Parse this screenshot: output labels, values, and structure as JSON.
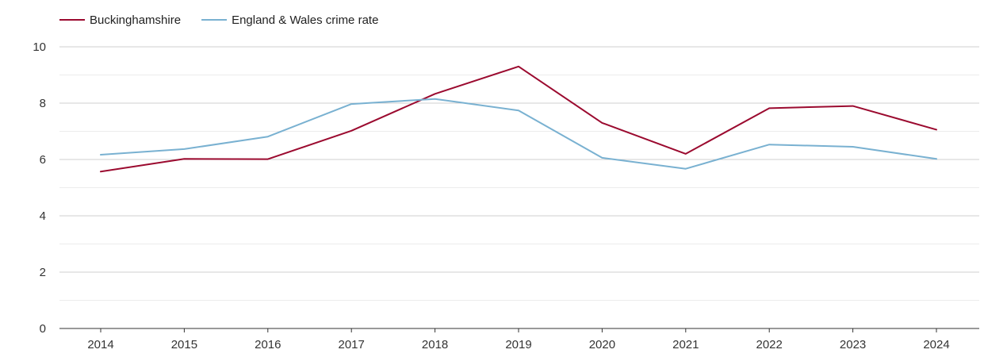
{
  "chart_data": {
    "type": "line",
    "title": "",
    "xlabel": "",
    "ylabel": "",
    "x": [
      "2014",
      "2015",
      "2016",
      "2017",
      "2018",
      "2019",
      "2020",
      "2021",
      "2022",
      "2023",
      "2024"
    ],
    "ylim": [
      0,
      10
    ],
    "yticks": [
      0,
      2,
      4,
      6,
      8,
      10
    ],
    "grid": true,
    "legend_position": "top-left",
    "series": [
      {
        "name": "Buckinghamshire",
        "color": "#9b0a2f",
        "values": [
          5.57,
          6.02,
          6.01,
          7.02,
          8.33,
          9.3,
          7.3,
          6.2,
          7.82,
          7.9,
          7.06
        ]
      },
      {
        "name": "England & Wales crime rate",
        "color": "#79b1d1",
        "values": [
          6.17,
          6.37,
          6.81,
          7.97,
          8.15,
          7.74,
          6.06,
          5.67,
          6.53,
          6.45,
          6.02
        ]
      }
    ]
  }
}
